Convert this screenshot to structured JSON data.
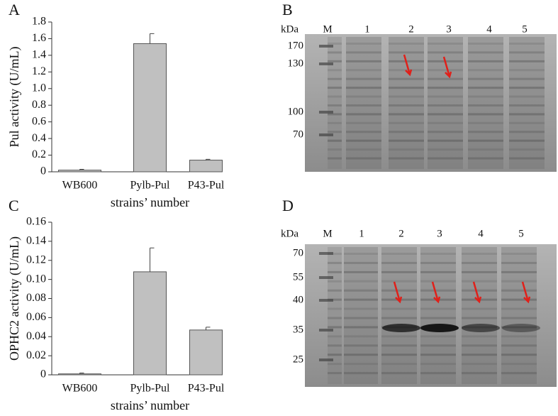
{
  "chart_data": [
    {
      "type": "bar",
      "label": "A",
      "ylabel": "Pul activity (U/mL)",
      "xlabel": "strains’ number",
      "categories": [
        "WB600",
        "Pylb-Pul",
        "P43-Pul"
      ],
      "values": [
        0.02,
        1.54,
        0.14
      ],
      "errors": [
        0.01,
        0.12,
        0.01
      ],
      "color": "#c0c0c0",
      "ylim": [
        0,
        1.8
      ],
      "yticks": [
        0,
        0.2,
        0.4,
        0.6,
        0.8,
        {
          "value": 1,
          "label": "1.0"
        },
        1.2,
        1.4,
        1.6,
        1.8
      ]
    },
    {
      "type": "bar",
      "label": "C",
      "ylabel": "OPHC2 activity (U/mL)",
      "xlabel": "strains’ number",
      "categories": [
        "WB600",
        "Pylb-Pul",
        "P43-Pul"
      ],
      "values": [
        0.001,
        0.108,
        0.047
      ],
      "errors": [
        0.001,
        0.025,
        0.003
      ],
      "color": "#c0c0c0",
      "ylim": [
        0,
        0.16
      ],
      "yticks": [
        0,
        0.02,
        0.04,
        0.06,
        0.08,
        {
          "value": 0.1,
          "label": "0.10"
        },
        0.12,
        0.14,
        0.16
      ]
    }
  ],
  "gels": [
    {
      "label": "B",
      "unit": "kDa",
      "lanes": [
        "M",
        "1",
        "2",
        "3",
        "4",
        "5"
      ],
      "markers": [
        170,
        130,
        100,
        70
      ]
    },
    {
      "label": "D",
      "unit": "kDa",
      "lanes": [
        "M",
        "1",
        "2",
        "3",
        "4",
        "5"
      ],
      "markers": [
        70,
        55,
        40,
        35,
        25
      ]
    }
  ]
}
